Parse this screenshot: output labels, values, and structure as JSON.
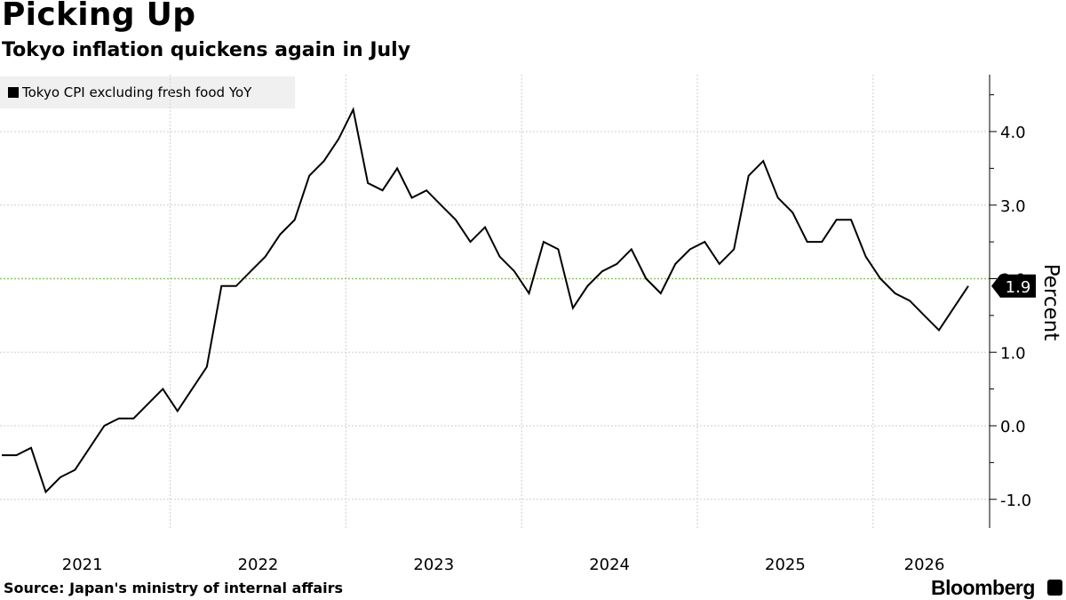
{
  "header": {
    "title": "Picking Up",
    "subtitle": "Tokyo inflation quickens again in July"
  },
  "footer": {
    "source": "Source: Japan's ministry of internal affairs",
    "brand": "Bloomberg"
  },
  "chart_data": {
    "type": "line",
    "series": [
      {
        "name": "Tokyo CPI excluding fresh food YoY",
        "color": "#000000",
        "values": [
          -0.4,
          -0.4,
          -0.3,
          -0.9,
          -0.7,
          -0.6,
          -0.3,
          0.0,
          0.1,
          0.1,
          0.3,
          0.5,
          0.2,
          0.5,
          0.8,
          1.9,
          1.9,
          2.1,
          2.3,
          2.6,
          2.8,
          3.4,
          3.6,
          3.9,
          4.3,
          3.3,
          3.2,
          3.5,
          3.1,
          3.2,
          3.0,
          2.8,
          2.5,
          2.7,
          2.3,
          2.1,
          1.8,
          2.5,
          2.4,
          1.6,
          1.9,
          2.1,
          2.2,
          2.4,
          2.0,
          1.8,
          2.2,
          2.4,
          2.5,
          2.2,
          2.4,
          3.4,
          3.6,
          3.1,
          2.9,
          2.5,
          2.5,
          2.8,
          2.8,
          2.3,
          2.0,
          1.8,
          1.7,
          1.5,
          1.3,
          1.6,
          1.9
        ]
      }
    ],
    "x_start": "2021-01",
    "x_end": "2026-07",
    "frequency": "monthly",
    "x_tick_labels": [
      "2021",
      "2022",
      "2023",
      "2024",
      "2025",
      "2026"
    ],
    "y_ticks": [
      "-1.0",
      "0.0",
      "1.0",
      "2.0",
      "3.0",
      "4.0"
    ],
    "y_tick_values": [
      -1.0,
      0.0,
      1.0,
      2.0,
      3.0,
      4.0
    ],
    "ylim": [
      -1.4,
      4.8
    ],
    "ylabel": "Percent",
    "last_value_label": "1.9",
    "reference_line": {
      "value": 2.0,
      "color": "#7fd34e",
      "style": "dotted"
    },
    "grid": true,
    "legend_position": "top-left",
    "axis_side": "right"
  }
}
